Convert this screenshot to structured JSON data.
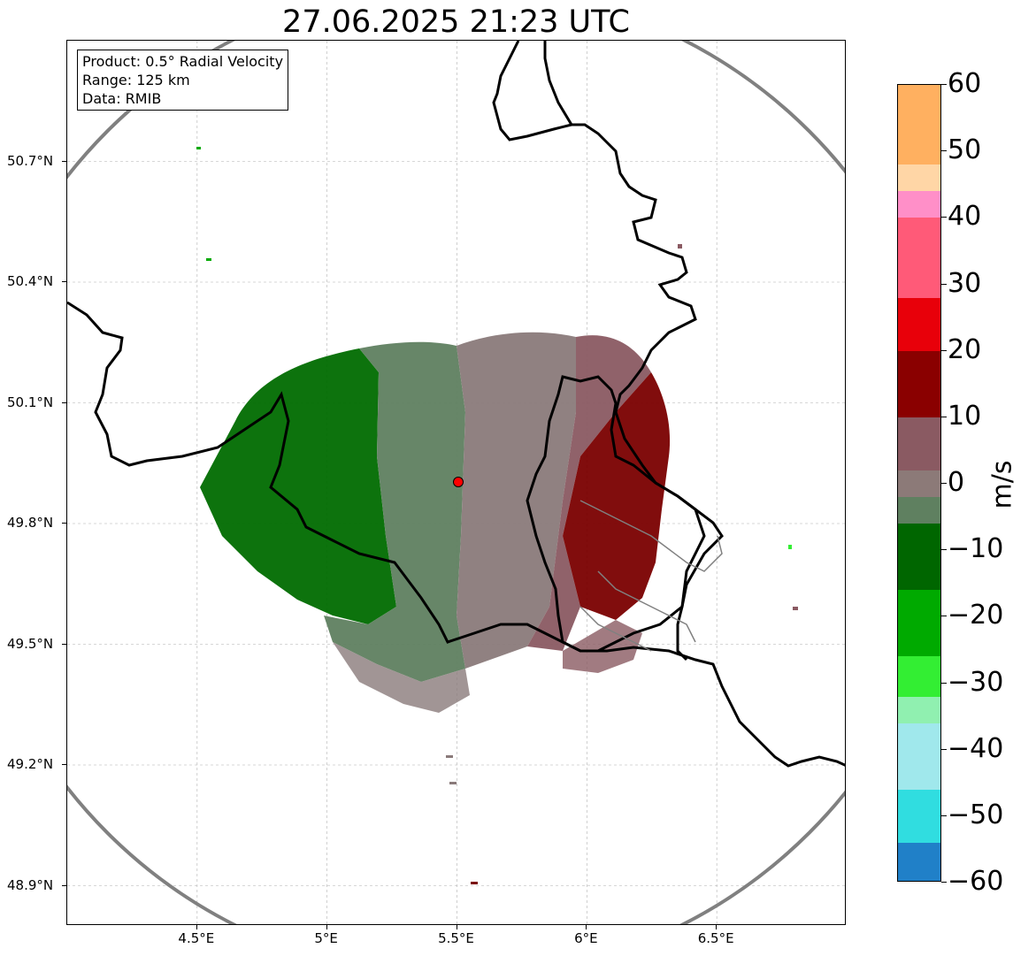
{
  "title": "27.06.2025 21:23 UTC",
  "info_box": {
    "product": "Product: 0.5° Radial Velocity",
    "range": "Range: 125 km",
    "data": "Data: RMIB"
  },
  "axes": {
    "lat_labels": [
      "50.7°N",
      "50.4°N",
      "50.1°N",
      "49.8°N",
      "49.5°N",
      "49.2°N",
      "48.9°N"
    ],
    "lat_values": [
      50.7,
      50.4,
      50.1,
      49.8,
      49.5,
      49.2,
      48.9
    ],
    "lon_labels": [
      "4.5°E",
      "5°E",
      "5.5°E",
      "6°E",
      "6.5°E"
    ],
    "lon_values": [
      4.5,
      5.0,
      5.5,
      6.0,
      6.5
    ],
    "lon_range": [
      4.0,
      7.0
    ],
    "lat_range": [
      48.8,
      51.0
    ]
  },
  "radar_site": {
    "lon": 5.5,
    "lat": 49.91,
    "color": "#ff0000"
  },
  "colorbar": {
    "unit": "m/s",
    "min": -60,
    "max": 60,
    "tick_labels": [
      "60",
      "50",
      "40",
      "30",
      "20",
      "10",
      "0",
      "−10",
      "−20",
      "−30",
      "−40",
      "−50",
      "−60"
    ],
    "tick_values": [
      60,
      50,
      40,
      30,
      20,
      10,
      0,
      -10,
      -20,
      -30,
      -40,
      -50,
      -60
    ],
    "stops": [
      {
        "from": 48,
        "to": 60,
        "color": "#ffb060"
      },
      {
        "from": 44,
        "to": 48,
        "color": "#ffd6a6"
      },
      {
        "from": 40,
        "to": 44,
        "color": "#ff8fc8"
      },
      {
        "from": 28,
        "to": 40,
        "color": "#ff5a78"
      },
      {
        "from": 20,
        "to": 28,
        "color": "#e8000a"
      },
      {
        "from": 10,
        "to": 20,
        "color": "#8a0000"
      },
      {
        "from": 2,
        "to": 10,
        "color": "#8a5a62"
      },
      {
        "from": -2,
        "to": 2,
        "color": "#8c7a78"
      },
      {
        "from": -6,
        "to": -2,
        "color": "#5f8060"
      },
      {
        "from": -16,
        "to": -6,
        "color": "#006600"
      },
      {
        "from": -26,
        "to": -16,
        "color": "#00aa00"
      },
      {
        "from": -32,
        "to": -26,
        "color": "#33ee33"
      },
      {
        "from": -36,
        "to": -32,
        "color": "#90f0b0"
      },
      {
        "from": -46,
        "to": -36,
        "color": "#a0e8ec"
      },
      {
        "from": -54,
        "to": -46,
        "color": "#30dde0"
      },
      {
        "from": -60,
        "to": -54,
        "color": "#2080c8"
      }
    ]
  },
  "colors": {
    "range_ring": "#808080",
    "border": "#000000",
    "inner_border": "#808080",
    "inbound_strong": "#006b00",
    "inbound_weak": "#5f8060",
    "near_zero": "#8a7a7a",
    "outbound_weak": "#8a5a62",
    "outbound_strong": "#7a0000"
  }
}
